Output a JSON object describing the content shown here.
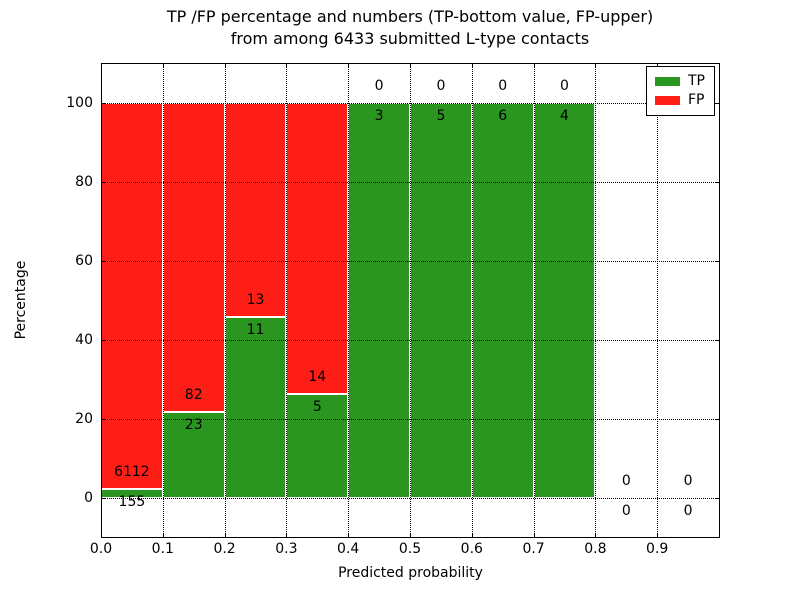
{
  "figure": {
    "background": "#ffffff"
  },
  "chart_data": {
    "type": "bar",
    "stacked": true,
    "title_line1": "TP /FP percentage and numbers (TP-bottom value, FP-upper)",
    "title_line2": "from among 6433 submitted L-type contacts",
    "xlabel": "Predicted probability",
    "ylabel": "Percentage",
    "x_ticks": [
      "0.0",
      "0.1",
      "0.2",
      "0.3",
      "0.4",
      "0.5",
      "0.6",
      "0.7",
      "0.8",
      "0.9"
    ],
    "y_tick_values": [
      0,
      20,
      40,
      60,
      80,
      100
    ],
    "xlim": [
      0.0,
      1.0
    ],
    "ylim": [
      -10,
      110
    ],
    "grid": true,
    "grid_style": "dotted",
    "legend_position": "upper right",
    "colors": {
      "tp": "#2a9620",
      "fp": "#fe1e16",
      "bar_edge": "#ffffff",
      "grid": "#000000"
    },
    "legend": [
      {
        "label": "TP",
        "color": "#2a9620"
      },
      {
        "label": "FP",
        "color": "#fe1e16"
      }
    ],
    "annotation_note": "TP count shown below segment boundary, FP count above",
    "bins": [
      {
        "x0": 0.0,
        "x1": 0.1,
        "tp": 155,
        "fp": 6112,
        "tp_pct": 2.47
      },
      {
        "x0": 0.1,
        "x1": 0.2,
        "tp": 23,
        "fp": 82,
        "tp_pct": 21.9
      },
      {
        "x0": 0.2,
        "x1": 0.3,
        "tp": 11,
        "fp": 13,
        "tp_pct": 45.83
      },
      {
        "x0": 0.3,
        "x1": 0.4,
        "tp": 5,
        "fp": 14,
        "tp_pct": 26.32
      },
      {
        "x0": 0.4,
        "x1": 0.5,
        "tp": 3,
        "fp": 0,
        "tp_pct": 100
      },
      {
        "x0": 0.5,
        "x1": 0.6,
        "tp": 5,
        "fp": 0,
        "tp_pct": 100
      },
      {
        "x0": 0.6,
        "x1": 0.7,
        "tp": 6,
        "fp": 0,
        "tp_pct": 100
      },
      {
        "x0": 0.7,
        "x1": 0.8,
        "tp": 4,
        "fp": 0,
        "tp_pct": 100
      },
      {
        "x0": 0.8,
        "x1": 0.9,
        "tp": 0,
        "fp": 0,
        "tp_pct": 0
      },
      {
        "x0": 0.9,
        "x1": 1.0,
        "tp": 0,
        "fp": 0,
        "tp_pct": 0
      }
    ]
  }
}
